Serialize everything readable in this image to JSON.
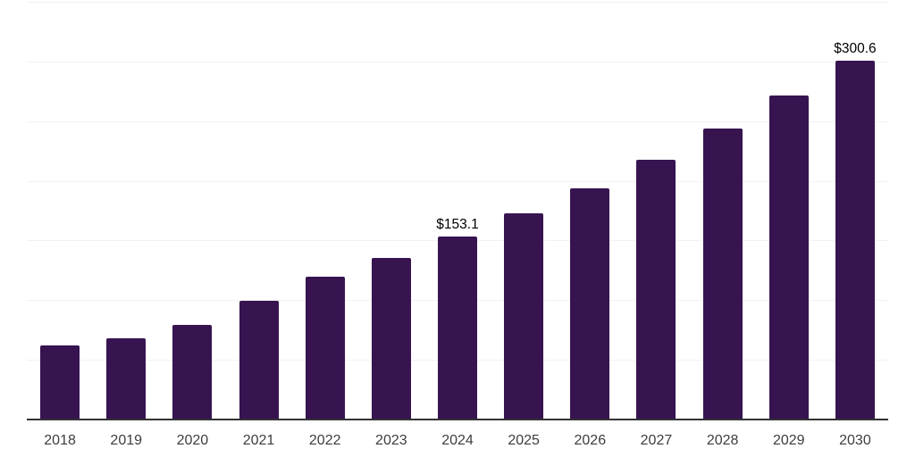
{
  "chart": {
    "background_color": "#ffffff",
    "bar_color": "#371450",
    "grid_color": "#f2f2f2",
    "axis_line_color": "#333333",
    "tick_label_color": "#3d3d3d",
    "data_label_color": "#000000"
  },
  "chart_data": {
    "type": "bar",
    "title": "",
    "xlabel": "",
    "ylabel": "",
    "categories": [
      "2018",
      "2019",
      "2020",
      "2021",
      "2022",
      "2023",
      "2024",
      "2025",
      "2026",
      "2027",
      "2028",
      "2029",
      "2030"
    ],
    "values": [
      62.0,
      68.0,
      79.2,
      99.4,
      119.6,
      135.3,
      153.1,
      172.6,
      193.5,
      217.5,
      243.6,
      271.3,
      300.6
    ],
    "data_labels": [
      {
        "category": "2024",
        "text": "$153.1"
      },
      {
        "category": "2030",
        "text": "$300.6"
      }
    ],
    "ylim": [
      0,
      350
    ],
    "grid_step": 50,
    "grid": "horizontal",
    "legend": "none",
    "y_axis_tick_labels_visible": false
  }
}
